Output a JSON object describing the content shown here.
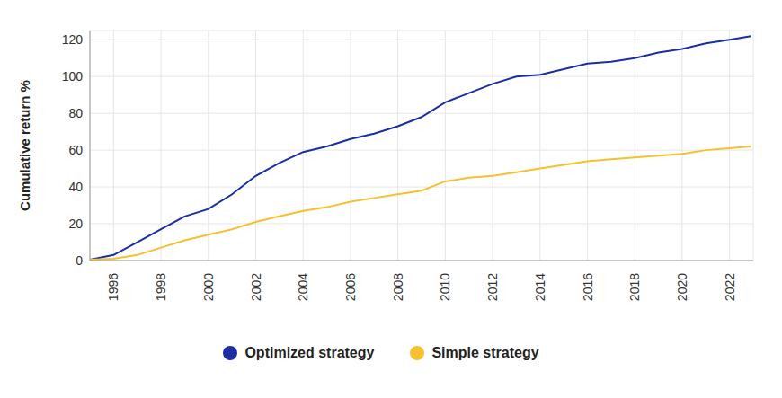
{
  "chart_data": {
    "type": "line",
    "ylabel": "Cumulative return %",
    "x": [
      1995,
      1996,
      1997,
      1998,
      1999,
      2000,
      2001,
      2002,
      2003,
      2004,
      2005,
      2006,
      2007,
      2008,
      2009,
      2010,
      2011,
      2012,
      2013,
      2014,
      2015,
      2016,
      2017,
      2018,
      2019,
      2020,
      2021,
      2022,
      2022.9
    ],
    "series": [
      {
        "name": "Optimized strategy",
        "color": "#1b2fa3",
        "values": [
          0.5,
          3,
          10,
          17,
          24,
          28,
          36,
          46,
          53,
          59,
          62,
          66,
          69,
          73,
          78,
          86,
          91,
          96,
          100,
          101,
          104,
          107,
          108,
          110,
          113,
          115,
          118,
          120,
          122
        ]
      },
      {
        "name": "Simple strategy",
        "color": "#f5c12e",
        "values": [
          0.5,
          1,
          3,
          7,
          11,
          14,
          17,
          21,
          24,
          27,
          29,
          32,
          34,
          36,
          38,
          43,
          45,
          46,
          48,
          50,
          52,
          54,
          55,
          56,
          57,
          58,
          60,
          61,
          62
        ]
      }
    ],
    "xlim": [
      1995,
      2023
    ],
    "xticks": [
      1996,
      1998,
      2000,
      2002,
      2004,
      2006,
      2008,
      2010,
      2012,
      2014,
      2016,
      2018,
      2020,
      2022
    ],
    "ylim": [
      0,
      125
    ],
    "yticks": [
      0,
      20,
      40,
      60,
      80,
      100,
      120
    ],
    "grid": true,
    "legend": "bottom"
  }
}
